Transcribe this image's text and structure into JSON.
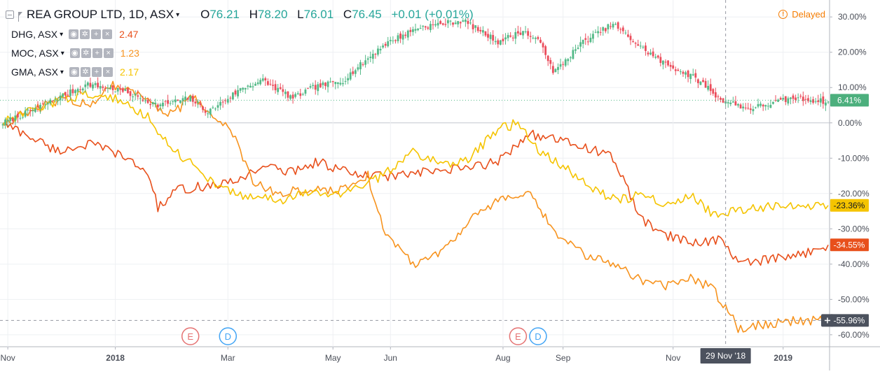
{
  "header": {
    "symbol": "REA GROUP LTD, 1D, ASX",
    "ohlc": {
      "o_key": "O",
      "o_val": "76.21",
      "h_key": "H",
      "h_val": "78.20",
      "l_key": "L",
      "l_val": "76.01",
      "c_key": "C",
      "c_val": "76.45",
      "change": "+0.01 (+0.01%)"
    },
    "delayed": "Delayed"
  },
  "compare": [
    {
      "symbol": "DHG, ASX",
      "value": "2.47",
      "color": "#e8501c"
    },
    {
      "symbol": "MOC, ASX",
      "value": "1.23",
      "color": "#f7931e"
    },
    {
      "symbol": "GMA, ASX",
      "value": "2.17",
      "color": "#f5c400"
    }
  ],
  "y_axis": {
    "ticks": [
      "30.00%",
      "20.00%",
      "10.00%",
      "0.00%",
      "-10.00%",
      "-20.00%",
      "-30.00%",
      "-40.00%",
      "-50.00%",
      "-60.00%"
    ],
    "tick_values": [
      30,
      20,
      10,
      0,
      -10,
      -20,
      -30,
      -40,
      -50,
      -60
    ],
    "badges": [
      {
        "label": "6.41%",
        "value": 6.41,
        "color": "#4caf7d"
      },
      {
        "label": "-23.36%",
        "value": -23.36,
        "color": "#f5c400"
      },
      {
        "label": "-34.55%",
        "value": -34.55,
        "color": "#e8501c"
      },
      {
        "label": "-55.96%",
        "value": -55.96,
        "color": "#4c525e"
      }
    ]
  },
  "x_axis": {
    "labels": [
      "Nov",
      "2018",
      "Mar",
      "May",
      "Jun",
      "Aug",
      "Sep",
      "Nov",
      "2019"
    ],
    "crosshair_date": "29 Nov '18"
  },
  "events": [
    {
      "label": "E",
      "type": "earnings",
      "color": "#e57373"
    },
    {
      "label": "D",
      "type": "dividend",
      "color": "#42a5f5"
    },
    {
      "label": "E",
      "type": "earnings",
      "color": "#e57373"
    },
    {
      "label": "D",
      "type": "dividend",
      "color": "#42a5f5"
    }
  ],
  "icons": {
    "collapse": "collapse-icon",
    "flag": "flag-icon",
    "eye": "eye-icon",
    "gear": "gear-icon",
    "plus": "plus-icon",
    "close": "close-icon",
    "delayed": "alert-circle-icon",
    "crosshair_plus": "plus-icon"
  },
  "chart_data": {
    "type": "line",
    "ylim": [
      -63,
      34
    ],
    "x_range": [
      0,
      330
    ],
    "series": [
      {
        "name": "REA GROUP LTD",
        "type": "candlestick",
        "color_up": "#53b987",
        "color_down": "#eb4d5c",
        "anchors": [
          [
            0,
            0
          ],
          [
            10,
            3
          ],
          [
            22,
            7
          ],
          [
            34,
            11
          ],
          [
            48,
            9
          ],
          [
            62,
            5
          ],
          [
            75,
            7
          ],
          [
            82,
            3
          ],
          [
            96,
            10
          ],
          [
            104,
            12
          ],
          [
            116,
            7
          ],
          [
            124,
            10
          ],
          [
            136,
            12
          ],
          [
            152,
            22
          ],
          [
            166,
            27
          ],
          [
            184,
            29
          ],
          [
            198,
            23
          ],
          [
            208,
            26
          ],
          [
            216,
            22
          ],
          [
            220,
            14
          ],
          [
            232,
            23
          ],
          [
            244,
            28
          ],
          [
            254,
            22
          ],
          [
            264,
            17
          ],
          [
            276,
            13
          ],
          [
            282,
            10
          ],
          [
            286,
            7
          ],
          [
            298,
            4
          ],
          [
            316,
            7
          ],
          [
            330,
            6
          ]
        ]
      },
      {
        "name": "DHG, ASX",
        "color": "#e8501c",
        "anchors": [
          [
            0,
            0
          ],
          [
            14,
            -5
          ],
          [
            22,
            -8
          ],
          [
            34,
            -6
          ],
          [
            44,
            -8
          ],
          [
            58,
            -14
          ],
          [
            62,
            -24
          ],
          [
            70,
            -19
          ],
          [
            80,
            -18
          ],
          [
            92,
            -17
          ],
          [
            104,
            -12
          ],
          [
            114,
            -14
          ],
          [
            126,
            -11
          ],
          [
            142,
            -15
          ],
          [
            156,
            -15
          ],
          [
            170,
            -14
          ],
          [
            184,
            -13
          ],
          [
            198,
            -11
          ],
          [
            210,
            -3
          ],
          [
            222,
            -5
          ],
          [
            234,
            -7
          ],
          [
            244,
            -10
          ],
          [
            256,
            -28
          ],
          [
            266,
            -32
          ],
          [
            276,
            -34
          ],
          [
            286,
            -33
          ],
          [
            296,
            -40
          ],
          [
            304,
            -39
          ],
          [
            316,
            -38
          ],
          [
            330,
            -34.55
          ]
        ]
      },
      {
        "name": "MOC, ASX",
        "color": "#f7931e",
        "anchors": [
          [
            0,
            0
          ],
          [
            14,
            4
          ],
          [
            24,
            7
          ],
          [
            34,
            5
          ],
          [
            44,
            11
          ],
          [
            58,
            7
          ],
          [
            66,
            2
          ],
          [
            76,
            7
          ],
          [
            86,
            1
          ],
          [
            92,
            -3
          ],
          [
            100,
            -17
          ],
          [
            110,
            -20
          ],
          [
            122,
            -19
          ],
          [
            134,
            -19
          ],
          [
            146,
            -15
          ],
          [
            152,
            -30
          ],
          [
            164,
            -40
          ],
          [
            176,
            -36
          ],
          [
            186,
            -28
          ],
          [
            198,
            -22
          ],
          [
            210,
            -20
          ],
          [
            222,
            -32
          ],
          [
            234,
            -38
          ],
          [
            246,
            -40
          ],
          [
            256,
            -45
          ],
          [
            266,
            -46
          ],
          [
            276,
            -44
          ],
          [
            284,
            -47
          ],
          [
            294,
            -58
          ],
          [
            304,
            -57
          ],
          [
            316,
            -56
          ],
          [
            330,
            -55.96
          ]
        ]
      },
      {
        "name": "GMA, ASX",
        "color": "#f5c400",
        "anchors": [
          [
            0,
            0
          ],
          [
            14,
            4
          ],
          [
            24,
            7
          ],
          [
            34,
            8
          ],
          [
            44,
            7
          ],
          [
            58,
            2
          ],
          [
            66,
            -6
          ],
          [
            76,
            -12
          ],
          [
            88,
            -19
          ],
          [
            100,
            -21
          ],
          [
            110,
            -22
          ],
          [
            122,
            -20
          ],
          [
            134,
            -20
          ],
          [
            146,
            -17
          ],
          [
            152,
            -15
          ],
          [
            164,
            -8
          ],
          [
            176,
            -12
          ],
          [
            186,
            -10
          ],
          [
            198,
            -2
          ],
          [
            206,
            0
          ],
          [
            214,
            -8
          ],
          [
            224,
            -12
          ],
          [
            234,
            -18
          ],
          [
            246,
            -22
          ],
          [
            256,
            -20
          ],
          [
            266,
            -23
          ],
          [
            276,
            -21
          ],
          [
            284,
            -26
          ],
          [
            294,
            -25
          ],
          [
            304,
            -24
          ],
          [
            316,
            -23
          ],
          [
            330,
            -23.36
          ]
        ]
      }
    ],
    "x_ticks": [
      {
        "label": "Nov",
        "x": 2
      },
      {
        "label": "2018",
        "x": 45
      },
      {
        "label": "Mar",
        "x": 90
      },
      {
        "label": "May",
        "x": 132
      },
      {
        "label": "Jun",
        "x": 155
      },
      {
        "label": "Aug",
        "x": 200
      },
      {
        "label": "Sep",
        "x": 224
      },
      {
        "label": "Nov",
        "x": 268
      },
      {
        "label": "2019",
        "x": 312
      }
    ],
    "events_x": [
      75,
      90,
      206,
      214
    ],
    "crosshair_x": 289,
    "crosshair_y": -55.96,
    "reference_line_y": 6.41
  }
}
